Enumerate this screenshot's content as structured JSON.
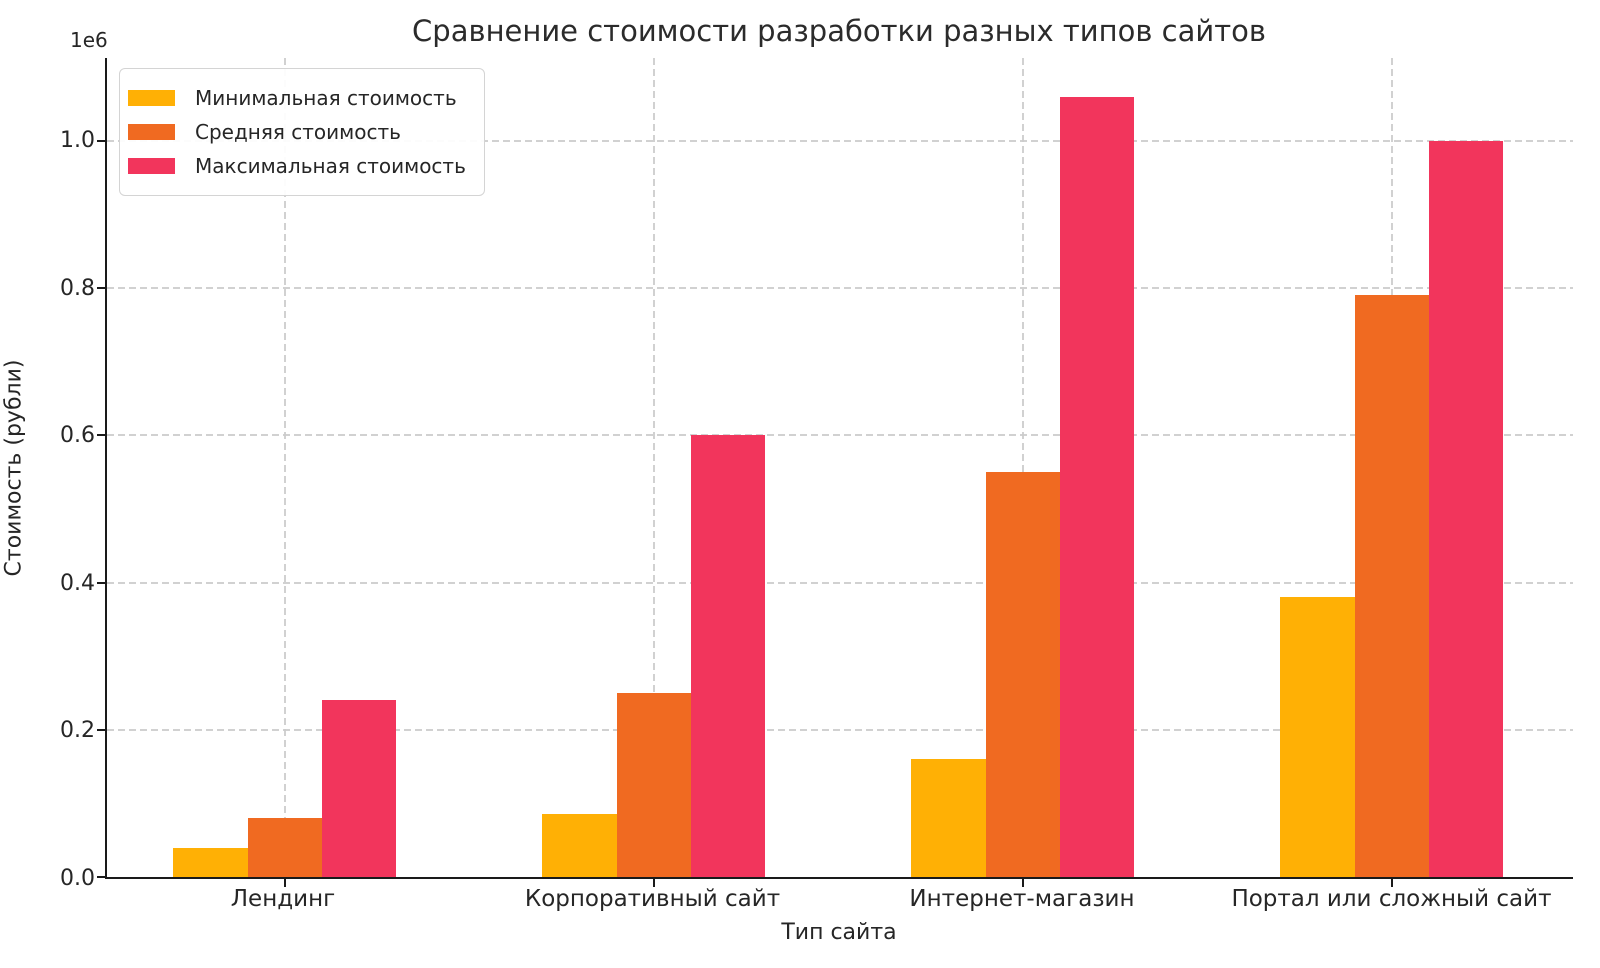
{
  "chart_data": {
    "type": "bar",
    "title": "Сравнение стоимости разработки разных типов сайтов",
    "xlabel": "Тип сайта",
    "ylabel": "Стоимость (рубли)",
    "y_offset_label": "1e6",
    "categories": [
      "Лендинг",
      "Корпоративный сайт",
      "Интернет-магазин",
      "Портал или сложный сайт"
    ],
    "series": [
      {
        "name": "Минимальная стоимость",
        "color": "#FFB005",
        "values": [
          40000,
          85000,
          160000,
          380000
        ]
      },
      {
        "name": "Средняя стоимость",
        "color": "#F06A21",
        "values": [
          80000,
          250000,
          550000,
          790000
        ]
      },
      {
        "name": "Максимальная стоимость",
        "color": "#F2355C",
        "values": [
          240000,
          600000,
          1060000,
          1000000
        ]
      }
    ],
    "ylim": [
      0,
      1112500
    ],
    "yticks": [
      0,
      200000,
      400000,
      600000,
      800000,
      1000000
    ],
    "ytick_labels": [
      "0.0",
      "0.2",
      "0.4",
      "0.6",
      "0.8",
      "1.0"
    ],
    "grid": true,
    "grid_style": "dashed",
    "legend_position": "upper left",
    "background_color": "#ffffff"
  }
}
